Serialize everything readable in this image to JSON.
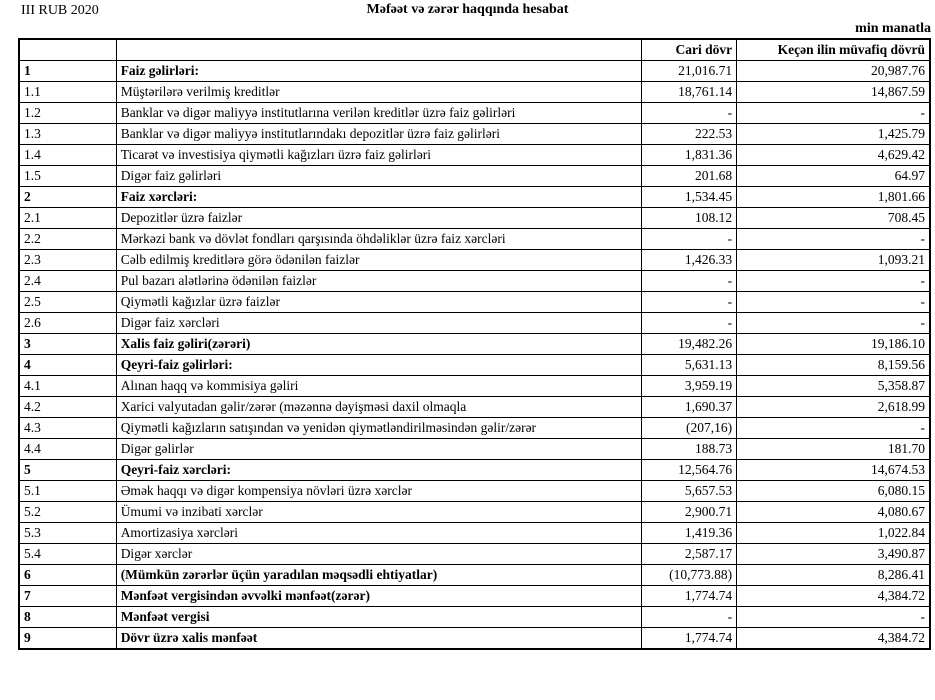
{
  "header": {
    "period": "III RUB 2020",
    "title": "Məfəət və zərər haqqında hesabat",
    "unit": "min manatla"
  },
  "table": {
    "columns": {
      "num": "",
      "label": "",
      "current": "Cari dövr",
      "previous": "Keçən ilin müvafiq dövrü"
    },
    "rows": [
      {
        "num": "1",
        "label": "Faiz gəlirləri:",
        "current": "21,016.71",
        "previous": "20,987.76",
        "bold": true
      },
      {
        "num": "1.1",
        "label": "Müştərilərə verilmiş kreditlər",
        "current": "18,761.14",
        "previous": "14,867.59",
        "bold": false
      },
      {
        "num": "1.2",
        "label": "Banklar və digər maliyyə institutlarına verilən kreditlər üzrə faiz gəlirləri",
        "current": "-",
        "previous": "-",
        "bold": false
      },
      {
        "num": "1.3",
        "label": "Banklar və digər maliyyə institutlarındakı depozitlər üzrə faiz gəlirləri",
        "current": "222.53",
        "previous": "1,425.79",
        "bold": false
      },
      {
        "num": "1.4",
        "label": "Ticarət və investisiya qiymətli kağızları üzrə faiz gəlirləri",
        "current": "1,831.36",
        "previous": "4,629.42",
        "bold": false
      },
      {
        "num": "1.5",
        "label": "Digər faiz gəlirləri",
        "current": "201.68",
        "previous": "64.97",
        "bold": false
      },
      {
        "num": "2",
        "label": "Faiz xərcləri:",
        "current": "1,534.45",
        "previous": "1,801.66",
        "bold": true
      },
      {
        "num": "2.1",
        "label": "Depozitlər üzrə faizlər",
        "current": "108.12",
        "previous": "708.45",
        "bold": false
      },
      {
        "num": "2.2",
        "label": "Mərkəzi bank və dövlət fondları qarşısında öhdəliklər üzrə faiz xərcləri",
        "current": "-",
        "previous": "-",
        "bold": false
      },
      {
        "num": "2.3",
        "label": "Cəlb edilmiş kreditlərə görə ödənilən faizlər",
        "current": "1,426.33",
        "previous": "1,093.21",
        "bold": false
      },
      {
        "num": "2.4",
        "label": "Pul bazarı alətlərinə ödənilən faizlər",
        "current": "-",
        "previous": "-",
        "bold": false
      },
      {
        "num": "2.5",
        "label": "Qiymətli kağızlar üzrə faizlər",
        "current": "-",
        "previous": "-",
        "bold": false
      },
      {
        "num": "2.6",
        "label": "Digər faiz xərcləri",
        "current": "-",
        "previous": "-",
        "bold": false
      },
      {
        "num": "3",
        "label": "Xalis faiz gəliri(zərəri)",
        "current": "19,482.26",
        "previous": "19,186.10",
        "bold": true
      },
      {
        "num": "4",
        "label": "Qeyri-faiz gəlirləri:",
        "current": "5,631.13",
        "previous": "8,159.56",
        "bold": true
      },
      {
        "num": "4.1",
        "label": "Alınan haqq və kommisiya gəliri",
        "current": "3,959.19",
        "previous": "5,358.87",
        "bold": false
      },
      {
        "num": "4.2",
        "label": "Xarici valyutadan gəlir/zərər (məzənnə dəyişməsi daxil olmaqla",
        "current": "1,690.37",
        "previous": "2,618.99",
        "bold": false
      },
      {
        "num": "4.3",
        "label": "Qiymətli kağızların satışından və yenidən qiymətləndirilməsindən gəlir/zərər",
        "current": "(207,16)",
        "previous": "-",
        "bold": false
      },
      {
        "num": "4.4",
        "label": "Digər gəlirlər",
        "current": "188.73",
        "previous": "181.70",
        "bold": false
      },
      {
        "num": "5",
        "label": "Qeyri-faiz xərcləri:",
        "current": "12,564.76",
        "previous": "14,674.53",
        "bold": true
      },
      {
        "num": "5.1",
        "label": "Əmək haqqı və digər kompensiya növləri üzrə xərclər",
        "current": "5,657.53",
        "previous": "6,080.15",
        "bold": false
      },
      {
        "num": "5.2",
        "label": "Ümumi və inzibati xərclər",
        "current": "2,900.71",
        "previous": "4,080.67",
        "bold": false
      },
      {
        "num": "5.3",
        "label": "Amortizasiya xərcləri",
        "current": "1,419.36",
        "previous": "1,022.84",
        "bold": false
      },
      {
        "num": "5.4",
        "label": "Digər xərclər",
        "current": "2,587.17",
        "previous": "3,490.87",
        "bold": false
      },
      {
        "num": "6",
        "label": "(Mümkün zərərlər üçün yaradılan məqsədli ehtiyatlar)",
        "current": "(10,773.88)",
        "previous": "8,286.41",
        "bold": true
      },
      {
        "num": "7",
        "label": "Mənfəət vergisindən əvvəlki mənfəət(zərər)",
        "current": "1,774.74",
        "previous": "4,384.72",
        "bold": true
      },
      {
        "num": "8",
        "label": "Mənfəət vergisi",
        "current": "-",
        "previous": "-",
        "bold": true
      },
      {
        "num": "9",
        "label": "Dövr üzrə xalis mənfəət",
        "current": "1,774.74",
        "previous": "4,384.72",
        "bold": true
      }
    ]
  }
}
